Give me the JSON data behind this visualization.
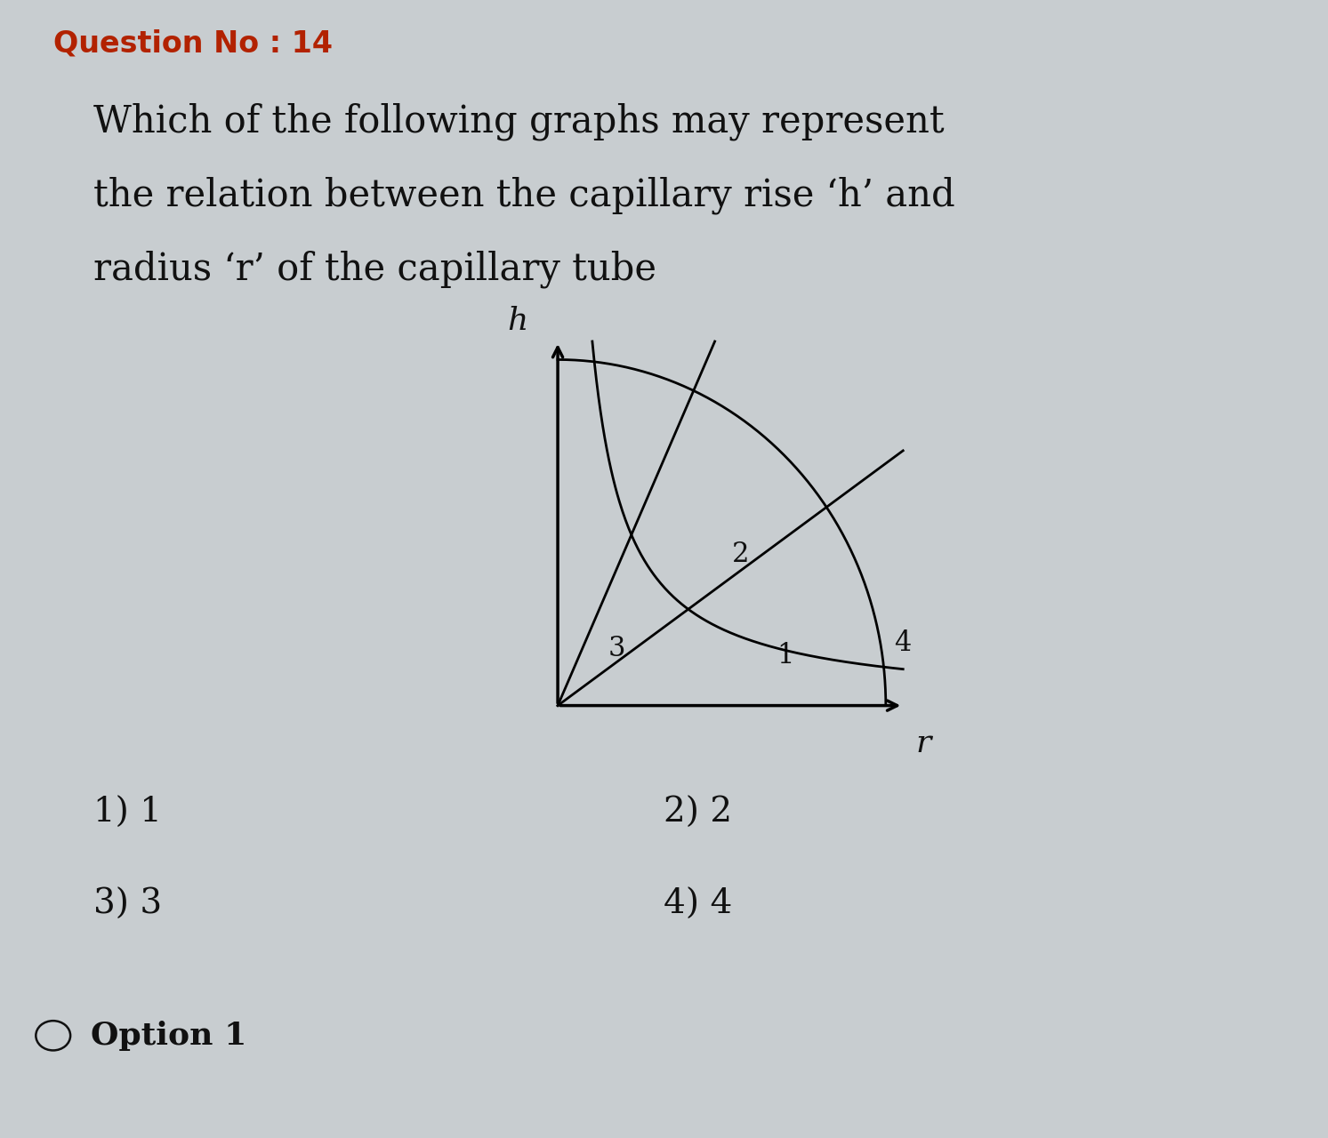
{
  "question_no": "Question No : 14",
  "question_no_color": "#b22200",
  "question_text_line1": "Which of the following graphs may represent",
  "question_text_line2": "the relation between the capillary rise ‘h’ and",
  "question_text_line3": "radius ‘r’ of the capillary tube",
  "option1_label": "1) 1",
  "option2_label": "2) 2",
  "option3_label": "3) 3",
  "option4_label": "4) 4",
  "answer_label": "Option 1",
  "bg_color": "#c8cdd0",
  "text_color": "#111111",
  "graph_label_h": "h",
  "graph_label_r": "r",
  "curve_labels": [
    "1",
    "2",
    "3",
    "4"
  ],
  "graph_ox": 0.42,
  "graph_oy": 0.38,
  "graph_xend": 0.68,
  "graph_yend": 0.7
}
